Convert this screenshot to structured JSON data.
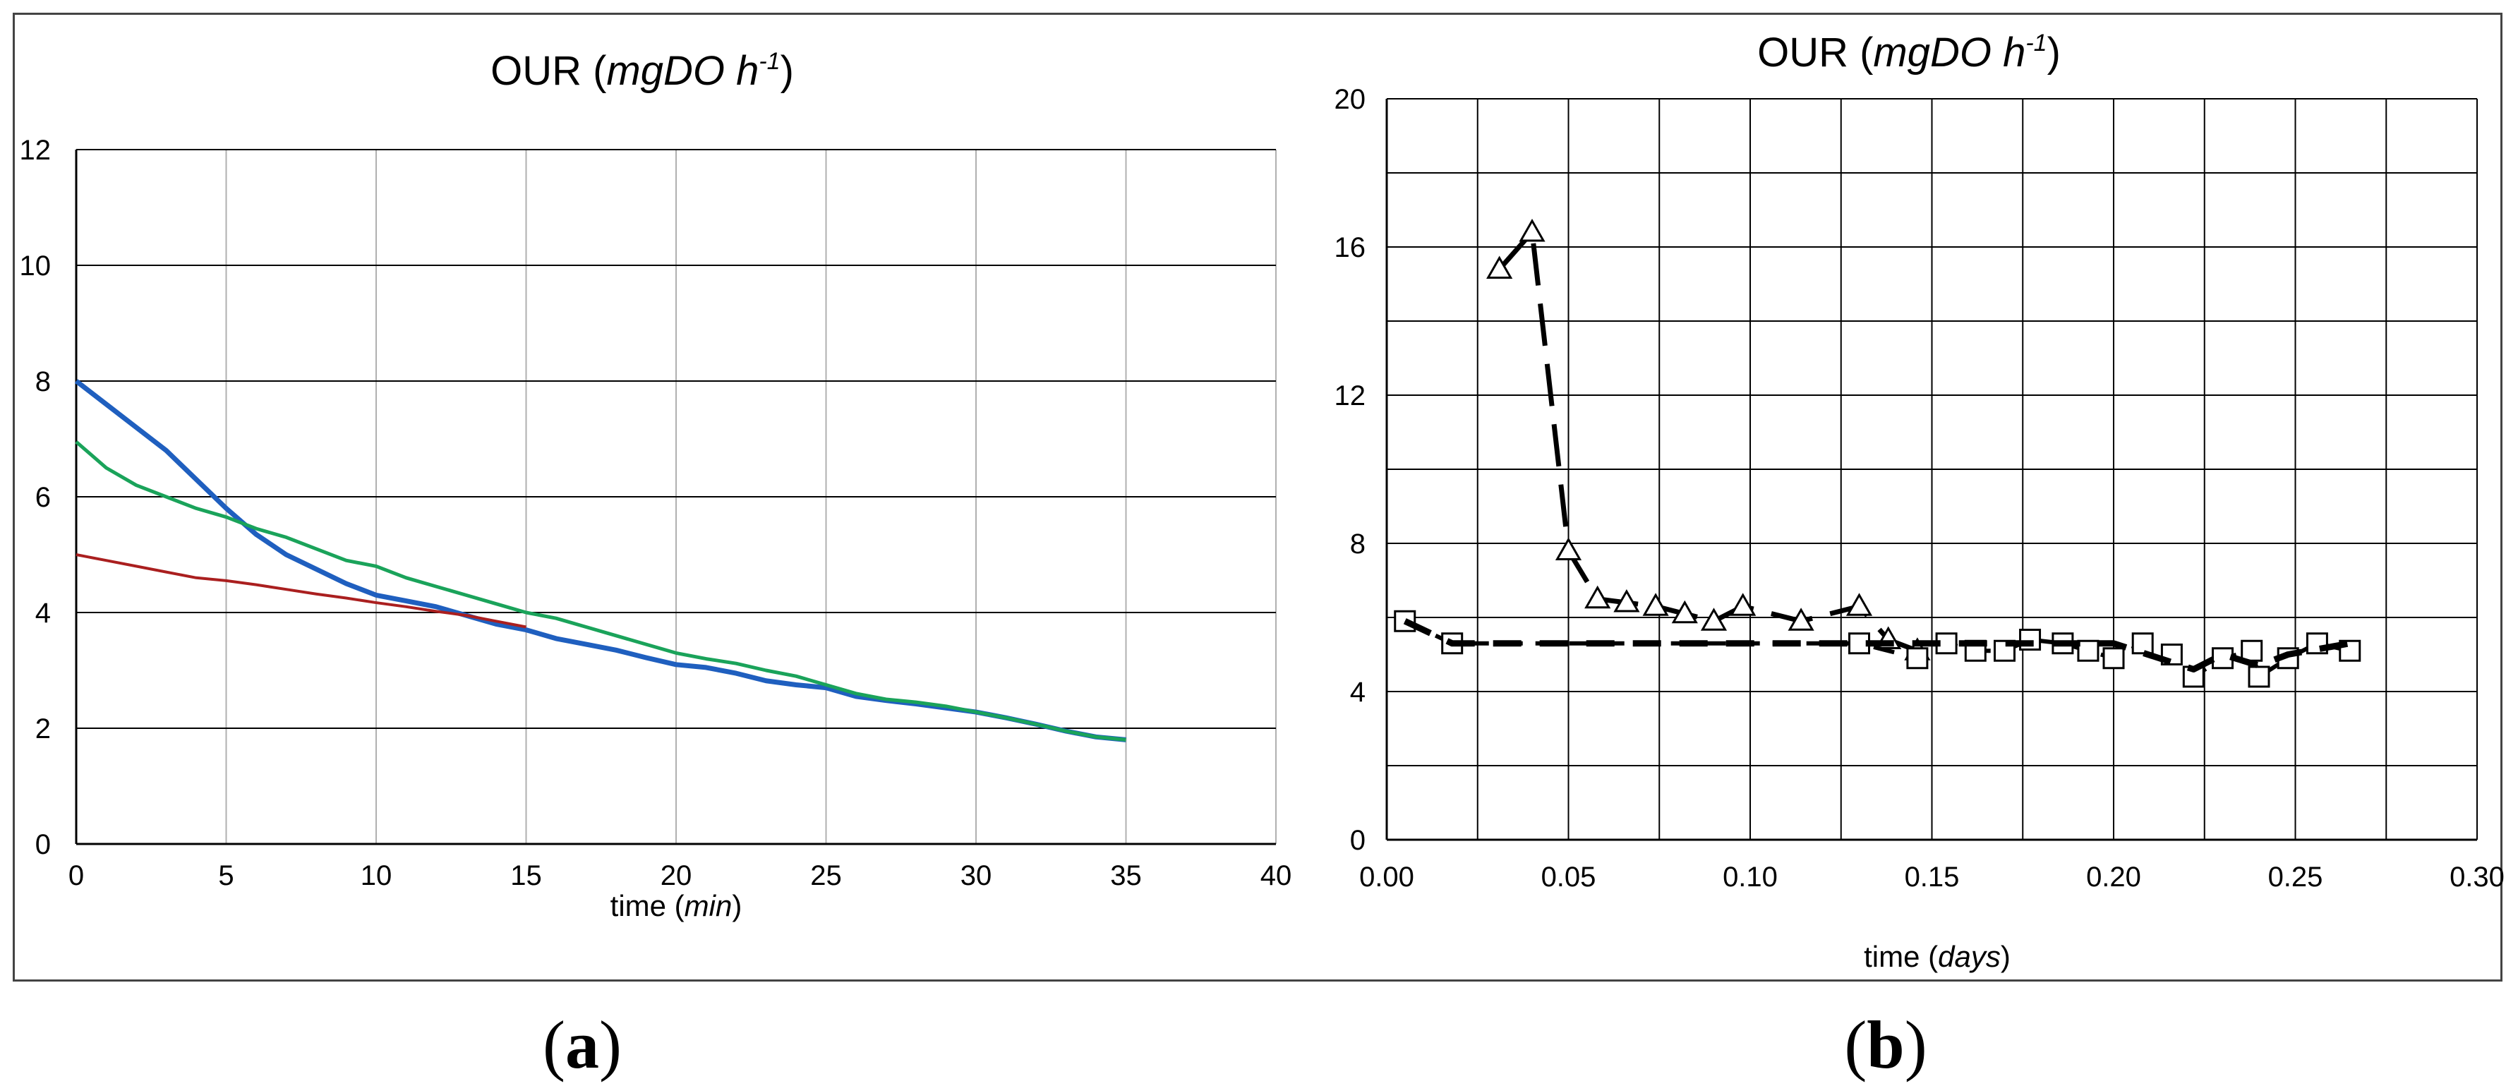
{
  "panels": {
    "a": "a",
    "b": "b",
    "open_paren": "(",
    "close_paren": ")"
  },
  "chart_data": [
    {
      "type": "line",
      "title": "OUR (mgDO h-1)",
      "title_parts": {
        "prefix": "OUR (",
        "italic": "mgDO h",
        "sup": "-1",
        "suffix": ")"
      },
      "xlabel": "time (min)",
      "xlabel_parts": {
        "prefix": "time (",
        "italic": "min",
        "suffix": ")"
      },
      "ylabel": "",
      "xlim": [
        0,
        40
      ],
      "ylim": [
        0,
        12
      ],
      "xticks": [
        0,
        5,
        10,
        15,
        20,
        25,
        30,
        35,
        40
      ],
      "yticks": [
        0,
        2,
        4,
        6,
        8,
        10,
        12
      ],
      "grid": true,
      "series": [
        {
          "color": "#1f5fbf",
          "width": 7,
          "x": [
            0,
            1,
            2,
            3,
            4,
            5,
            6,
            7,
            8,
            9,
            10,
            11,
            12,
            13,
            14,
            15,
            16,
            17,
            18,
            19,
            20,
            21,
            22,
            23,
            24,
            25,
            26,
            27,
            28,
            29,
            30,
            31,
            32,
            33,
            34,
            35
          ],
          "y": [
            8.0,
            7.6,
            7.2,
            6.8,
            6.3,
            5.8,
            5.35,
            5.0,
            4.75,
            4.5,
            4.3,
            4.2,
            4.1,
            3.95,
            3.8,
            3.7,
            3.55,
            3.45,
            3.35,
            3.22,
            3.1,
            3.05,
            2.95,
            2.82,
            2.75,
            2.7,
            2.55,
            2.48,
            2.42,
            2.35,
            2.28,
            2.18,
            2.07,
            1.95,
            1.85,
            1.8
          ]
        },
        {
          "color": "#1aa35a",
          "width": 5,
          "x": [
            0,
            1,
            2,
            3,
            4,
            5,
            6,
            7,
            8,
            9,
            10,
            11,
            12,
            13,
            14,
            15,
            16,
            17,
            18,
            19,
            20,
            21,
            22,
            23,
            24,
            25,
            26,
            27,
            28,
            29,
            30,
            31,
            32,
            33,
            34,
            35
          ],
          "y": [
            6.95,
            6.5,
            6.2,
            6.0,
            5.8,
            5.65,
            5.45,
            5.3,
            5.1,
            4.9,
            4.8,
            4.6,
            4.45,
            4.3,
            4.15,
            4.0,
            3.9,
            3.75,
            3.6,
            3.45,
            3.3,
            3.2,
            3.12,
            3.0,
            2.9,
            2.75,
            2.6,
            2.5,
            2.45,
            2.38,
            2.28,
            2.18,
            2.07,
            1.95,
            1.85,
            1.8
          ]
        },
        {
          "color": "#aa1f1f",
          "width": 4,
          "x": [
            0,
            1,
            2,
            3,
            4,
            5,
            6,
            7,
            8,
            9,
            10,
            11,
            12,
            13,
            14,
            15
          ],
          "y": [
            5.0,
            4.9,
            4.8,
            4.7,
            4.6,
            4.55,
            4.48,
            4.4,
            4.32,
            4.25,
            4.17,
            4.1,
            4.02,
            3.95,
            3.85,
            3.75
          ]
        }
      ]
    },
    {
      "type": "line",
      "title": "OUR (mgDO h-1)",
      "title_parts": {
        "prefix": "OUR (",
        "italic": "mgDO h",
        "sup": "-1",
        "suffix": ")"
      },
      "xlabel": "time (days)",
      "xlabel_parts": {
        "prefix": "time (",
        "italic": "days",
        "suffix": ")"
      },
      "ylabel": "",
      "xlim": [
        0,
        0.3
      ],
      "ylim": [
        0,
        20
      ],
      "xticks": [
        "0.00",
        "0.05",
        "0.10",
        "0.15",
        "0.20",
        "0.25",
        "0.30"
      ],
      "yticks": [
        0,
        4,
        8,
        12,
        16,
        20
      ],
      "grid": true,
      "series": [
        {
          "marker": "triangle",
          "line": "long-dash",
          "color": "#000000",
          "x": [
            0.031,
            0.04,
            0.05,
            0.058,
            0.066,
            0.074,
            0.082,
            0.09,
            0.098,
            0.114,
            0.13,
            0.138,
            0.146
          ],
          "y": [
            15.4,
            16.4,
            7.8,
            6.5,
            6.4,
            6.3,
            6.1,
            5.9,
            6.3,
            5.9,
            6.3,
            5.4,
            5.1
          ]
        },
        {
          "marker": "square",
          "line": "dash",
          "color": "#000000",
          "x": [
            0.005,
            0.018,
            0.13,
            0.146,
            0.154,
            0.162,
            0.17,
            0.177,
            0.186,
            0.193,
            0.2,
            0.208,
            0.216,
            0.222,
            0.23,
            0.238,
            0.24,
            0.248,
            0.256,
            0.265
          ],
          "y": [
            5.9,
            5.3,
            5.3,
            4.9,
            5.3,
            5.1,
            5.1,
            5.4,
            5.3,
            5.1,
            4.9,
            5.3,
            5.0,
            4.4,
            4.9,
            5.1,
            4.4,
            4.9,
            5.3,
            5.1
          ]
        },
        {
          "marker": "none",
          "line": "heavy-dash",
          "color": "#000000",
          "x": [
            0.005,
            0.018,
            0.13,
            0.2,
            0.222,
            0.23,
            0.24,
            0.248,
            0.265
          ],
          "y": [
            5.9,
            5.3,
            5.3,
            5.3,
            4.6,
            5.0,
            4.7,
            5.0,
            5.3
          ]
        }
      ]
    }
  ]
}
